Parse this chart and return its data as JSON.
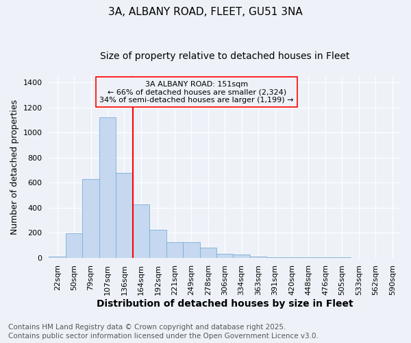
{
  "title_line1": "3A, ALBANY ROAD, FLEET, GU51 3NA",
  "title_line2": "Size of property relative to detached houses in Fleet",
  "xlabel": "Distribution of detached houses by size in Fleet",
  "ylabel": "Number of detached properties",
  "categories": [
    "22sqm",
    "50sqm",
    "79sqm",
    "107sqm",
    "136sqm",
    "164sqm",
    "192sqm",
    "221sqm",
    "249sqm",
    "278sqm",
    "306sqm",
    "334sqm",
    "363sqm",
    "391sqm",
    "420sqm",
    "448sqm",
    "476sqm",
    "505sqm",
    "533sqm",
    "562sqm",
    "590sqm"
  ],
  "values": [
    10,
    195,
    630,
    1120,
    680,
    425,
    220,
    125,
    125,
    80,
    30,
    25,
    10,
    4,
    3,
    2,
    1,
    1,
    0,
    0,
    0
  ],
  "bar_color": "#c5d8f0",
  "bar_edge_color": "#7aaed4",
  "red_line_x": 4.5,
  "ylim": [
    0,
    1450
  ],
  "yticks": [
    0,
    200,
    400,
    600,
    800,
    1000,
    1200,
    1400
  ],
  "annotation_text_l1": "3A ALBANY ROAD: 151sqm",
  "annotation_text_l2": "← 66% of detached houses are smaller (2,324)",
  "annotation_text_l3": "34% of semi-detached houses are larger (1,199) →",
  "background_color": "#eef2f8",
  "grid_color": "#ffffff",
  "footer_line1": "Contains HM Land Registry data © Crown copyright and database right 2025.",
  "footer_line2": "Contains public sector information licensed under the Open Government Licence v3.0.",
  "title_fontsize": 11,
  "subtitle_fontsize": 10,
  "tick_fontsize": 8,
  "xlabel_fontsize": 10,
  "ylabel_fontsize": 9,
  "annot_fontsize": 8,
  "footer_fontsize": 7.5
}
